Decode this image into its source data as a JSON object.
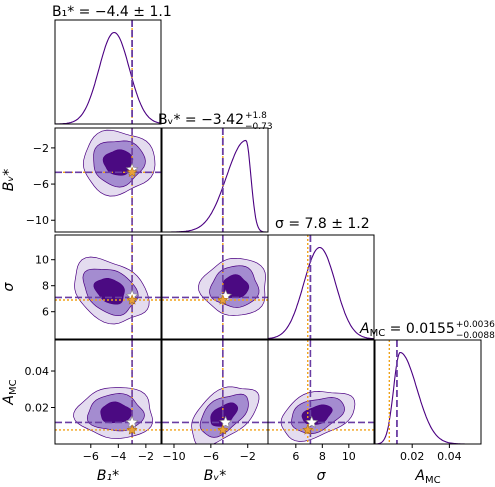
{
  "chart_data": {
    "type": "corner",
    "parameters": [
      {
        "key": "B1",
        "xlabel": "B₁*",
        "ylabel": "",
        "title": "B₁* = −4.4 ± 1.1",
        "ticks": [
          -6,
          -4,
          -2
        ],
        "tick_labels": [
          "−6",
          "−4",
          "−2"
        ],
        "range": [
          -8.6,
          -0.9
        ]
      },
      {
        "key": "Bv",
        "xlabel": "Bᵥ*",
        "ylabel": "Bᵥ*",
        "title": "Bᵥ* = −3.42",
        "title_sup": "+1.8",
        "title_sub": "−0.73",
        "ticks": [
          -10,
          -6,
          -2
        ],
        "tick_labels": [
          "−10",
          "−6",
          "−2"
        ],
        "range": [
          -11.3,
          0.2
        ]
      },
      {
        "key": "sigma",
        "xlabel": "σ",
        "ylabel": "σ",
        "title": "σ = 7.8 ± 1.2",
        "ticks": [
          6,
          8,
          10
        ],
        "tick_labels": [
          "6",
          "8",
          "10"
        ],
        "range": [
          3.9,
          11.9
        ]
      },
      {
        "key": "AMC",
        "xlabel": "A",
        "xlabel_sub": "MC",
        "ylabel": "A",
        "ylabel_sub": "MC",
        "title": "A",
        "title_sub_label": "MC",
        "title_value": " = 0.0155",
        "title_sup": "+0.0036",
        "title_sub": "−0.0088",
        "ticks": [
          0.02,
          0.04
        ],
        "tick_labels": [
          "0.02",
          "0.04"
        ],
        "range": [
          0.0,
          0.057
        ]
      }
    ],
    "medians": {
      "B1": -3.0,
      "Bv": -4.7,
      "sigma": 7.1,
      "AMC": 0.0118
    },
    "truth_white_stars": {
      "B1": -3.0,
      "Bv": -4.4,
      "sigma": 7.2,
      "AMC": 0.0118
    },
    "orange_stars": {
      "B1": -3.0,
      "Bv": -4.7,
      "sigma": 6.9,
      "AMC": 0.0077
    },
    "marginals": {
      "B1": {
        "center": -4.3,
        "sigma": 1.1
      },
      "Bv": {
        "center": -2.2,
        "left_sigma": 2.1,
        "right_sigma": 0.55
      },
      "sigma": {
        "center": 7.8,
        "sigma": 1.2
      },
      "AMC": {
        "center": 0.0135,
        "left_sigma": 0.0035,
        "right_sigma": 0.009
      }
    },
    "contour_levels": [
      "1σ",
      "2σ",
      "3σ"
    ],
    "colors": {
      "fill_1sigma": "#4b0a82",
      "fill_2sigma": "#a48cd0",
      "fill_3sigma": "#e4dcef",
      "line": "#4b0082",
      "median_line": "#6a3da3",
      "orange": "#f0a21a",
      "truth_star": "#ffffff",
      "orange_star": "#e8a13a"
    },
    "grid": false
  }
}
